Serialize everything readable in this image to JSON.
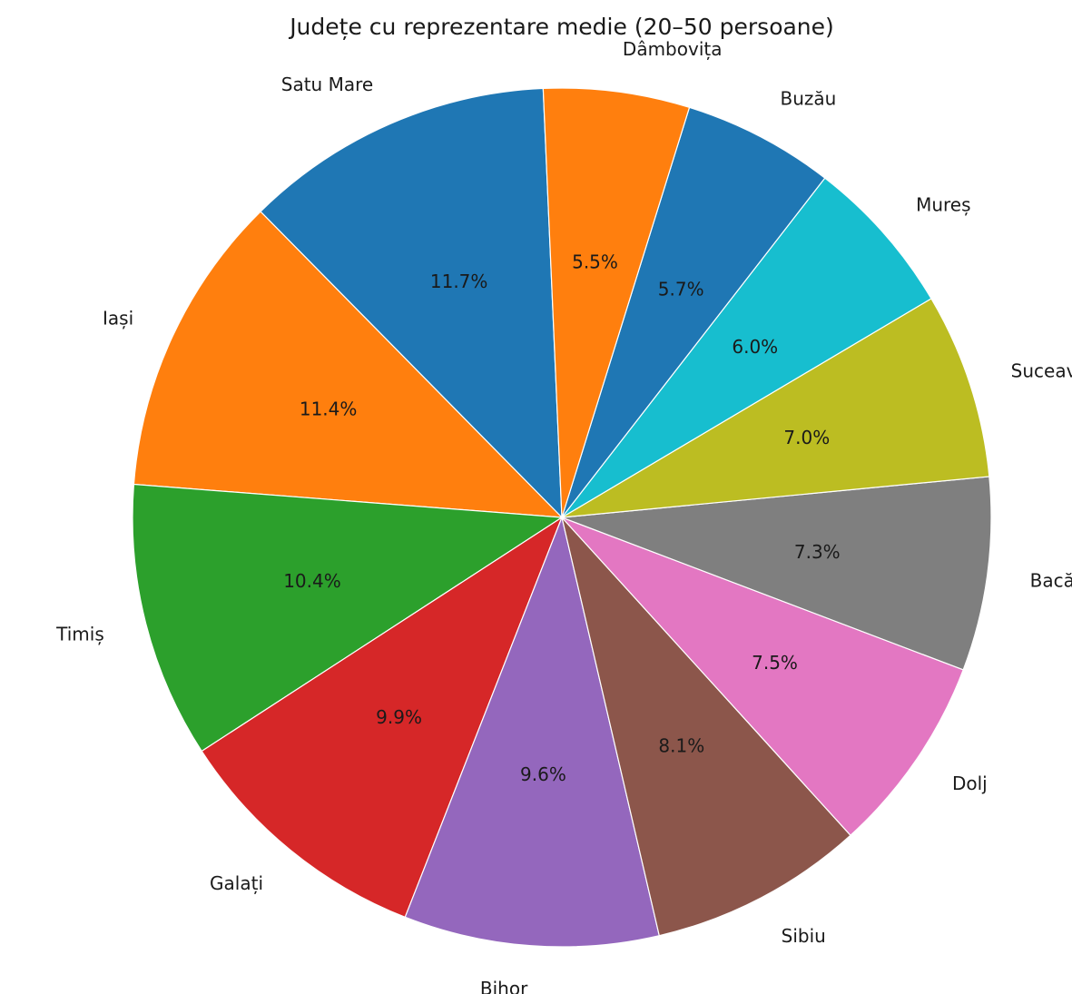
{
  "chart_data": {
    "type": "pie",
    "title": "Județe cu reprezentare medie (20–50 persoane)",
    "slices": [
      {
        "label": "Satu Mare",
        "value": 11.7,
        "pct_label": "11.7%",
        "color": "#1f77b4"
      },
      {
        "label": "Iași",
        "value": 11.4,
        "pct_label": "11.4%",
        "color": "#ff7f0e"
      },
      {
        "label": "Timiș",
        "value": 10.4,
        "pct_label": "10.4%",
        "color": "#2ca02c"
      },
      {
        "label": "Galați",
        "value": 9.9,
        "pct_label": "9.9%",
        "color": "#d62728"
      },
      {
        "label": "Bihor",
        "value": 9.6,
        "pct_label": "9.6%",
        "color": "#9467bd"
      },
      {
        "label": "Sibiu",
        "value": 8.1,
        "pct_label": "8.1%",
        "color": "#8c564b"
      },
      {
        "label": "Dolj",
        "value": 7.5,
        "pct_label": "7.5%",
        "color": "#e377c2"
      },
      {
        "label": "Bacău",
        "value": 7.3,
        "pct_label": "7.3%",
        "color": "#7f7f7f"
      },
      {
        "label": "Suceava",
        "value": 7.0,
        "pct_label": "7.0%",
        "color": "#bcbd22"
      },
      {
        "label": "Mureș",
        "value": 6.0,
        "pct_label": "6.0%",
        "color": "#17becf"
      },
      {
        "label": "Buzău",
        "value": 5.7,
        "pct_label": "5.7%",
        "color": "#1f77b4"
      },
      {
        "label": "Dâmbovița",
        "value": 5.5,
        "pct_label": "5.5%",
        "color": "#ff7f0e"
      }
    ],
    "start_angle_deg": 92.5,
    "direction": "counterclockwise",
    "legend": "none"
  }
}
